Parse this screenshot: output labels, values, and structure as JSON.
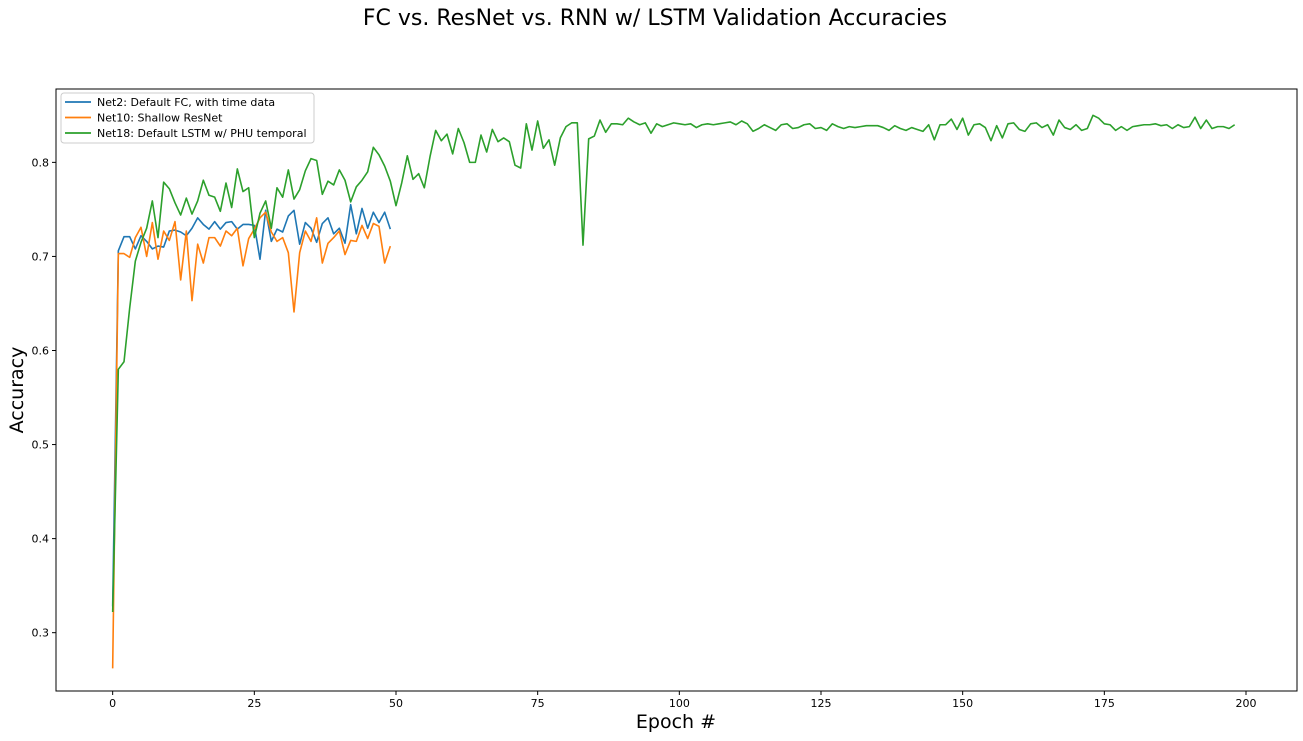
{
  "chart_data": {
    "type": "line",
    "title": "FC vs. ResNet vs. RNN w/ LSTM Validation Accuracies",
    "xlabel": "Epoch #",
    "ylabel": "Accuracy",
    "xlim": [
      -10,
      209
    ],
    "ylim": [
      0.238,
      0.878
    ],
    "xticks": [
      0,
      25,
      50,
      75,
      100,
      125,
      150,
      175,
      200
    ],
    "yticks": [
      0.3,
      0.4,
      0.5,
      0.6,
      0.7,
      0.8
    ],
    "grid": false,
    "legend": "top-left",
    "series": [
      {
        "name": "Net2: Default FC, with time data",
        "color": "#1f77b4",
        "values": [
          0.328,
          0.706,
          0.721,
          0.721,
          0.708,
          0.722,
          0.716,
          0.708,
          0.711,
          0.71,
          0.727,
          0.728,
          0.726,
          0.722,
          0.73,
          0.741,
          0.734,
          0.729,
          0.737,
          0.729,
          0.736,
          0.737,
          0.729,
          0.734,
          0.734,
          0.733,
          0.697,
          0.749,
          0.716,
          0.729,
          0.726,
          0.743,
          0.749,
          0.713,
          0.736,
          0.73,
          0.715,
          0.735,
          0.741,
          0.724,
          0.73,
          0.714,
          0.755,
          0.724,
          0.751,
          0.73,
          0.747,
          0.736,
          0.747,
          0.729
        ]
      },
      {
        "name": "Net10: Shallow ResNet",
        "color": "#ff7f0e",
        "values": [
          0.262,
          0.703,
          0.703,
          0.699,
          0.72,
          0.731,
          0.7,
          0.736,
          0.697,
          0.727,
          0.717,
          0.737,
          0.675,
          0.727,
          0.653,
          0.713,
          0.693,
          0.72,
          0.72,
          0.711,
          0.727,
          0.722,
          0.73,
          0.69,
          0.719,
          0.729,
          0.741,
          0.747,
          0.726,
          0.716,
          0.72,
          0.704,
          0.641,
          0.704,
          0.727,
          0.716,
          0.741,
          0.693,
          0.714,
          0.72,
          0.727,
          0.702,
          0.717,
          0.716,
          0.733,
          0.719,
          0.735,
          0.732,
          0.693,
          0.711
        ]
      },
      {
        "name": "Net18: Default LSTM w/ PHU temporal",
        "color": "#2ca02c",
        "values": [
          0.322,
          0.58,
          0.588,
          0.645,
          0.695,
          0.715,
          0.73,
          0.759,
          0.72,
          0.779,
          0.772,
          0.757,
          0.744,
          0.762,
          0.745,
          0.759,
          0.781,
          0.765,
          0.763,
          0.748,
          0.778,
          0.752,
          0.793,
          0.769,
          0.773,
          0.72,
          0.746,
          0.759,
          0.73,
          0.773,
          0.763,
          0.792,
          0.761,
          0.771,
          0.791,
          0.804,
          0.802,
          0.766,
          0.78,
          0.776,
          0.792,
          0.781,
          0.758,
          0.774,
          0.781,
          0.79,
          0.816,
          0.808,
          0.796,
          0.78,
          0.754,
          0.778,
          0.807,
          0.782,
          0.788,
          0.773,
          0.806,
          0.834,
          0.823,
          0.83,
          0.809,
          0.836,
          0.821,
          0.8,
          0.8,
          0.829,
          0.811,
          0.835,
          0.822,
          0.826,
          0.822,
          0.797,
          0.794,
          0.841,
          0.813,
          0.844,
          0.815,
          0.824,
          0.797,
          0.826,
          0.838,
          0.842,
          0.842,
          0.712,
          0.825,
          0.828,
          0.845,
          0.832,
          0.841,
          0.841,
          0.84,
          0.847,
          0.843,
          0.84,
          0.842,
          0.831,
          0.841,
          0.838,
          0.84,
          0.842,
          0.841,
          0.84,
          0.841,
          0.837,
          0.84,
          0.841,
          0.84,
          0.841,
          0.842,
          0.843,
          0.84,
          0.844,
          0.841,
          0.833,
          0.836,
          0.84,
          0.837,
          0.834,
          0.84,
          0.841,
          0.836,
          0.837,
          0.84,
          0.841,
          0.836,
          0.837,
          0.834,
          0.841,
          0.838,
          0.836,
          0.838,
          0.837,
          0.838,
          0.839,
          0.839,
          0.839,
          0.837,
          0.834,
          0.839,
          0.836,
          0.834,
          0.837,
          0.835,
          0.833,
          0.84,
          0.824,
          0.84,
          0.84,
          0.846,
          0.835,
          0.847,
          0.829,
          0.84,
          0.841,
          0.837,
          0.823,
          0.839,
          0.826,
          0.841,
          0.842,
          0.835,
          0.833,
          0.841,
          0.842,
          0.837,
          0.84,
          0.829,
          0.845,
          0.837,
          0.835,
          0.84,
          0.834,
          0.836,
          0.85,
          0.847,
          0.841,
          0.84,
          0.834,
          0.838,
          0.834,
          0.838,
          0.839,
          0.84,
          0.84,
          0.841,
          0.839,
          0.84,
          0.836,
          0.84,
          0.837,
          0.838,
          0.848,
          0.836,
          0.845,
          0.836,
          0.838,
          0.838,
          0.836,
          0.84
        ]
      }
    ]
  }
}
